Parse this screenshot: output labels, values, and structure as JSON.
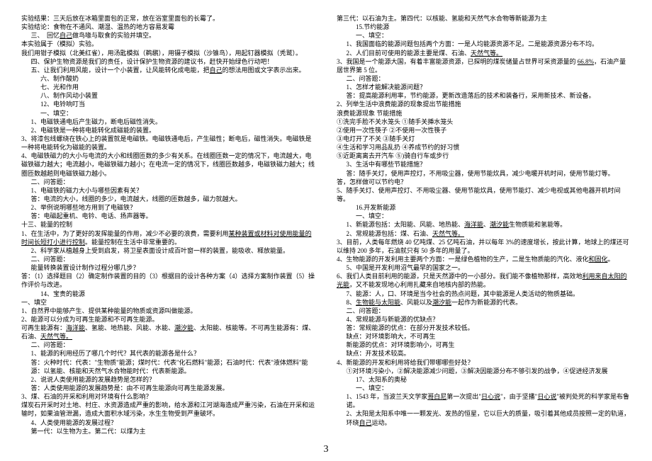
{
  "left": [
    {
      "t": "实验结果：三天后放在冰箱里面包的正常，放在浴室里面包的长霉了。",
      "c": ""
    },
    {
      "t": "实验结论：食物在不通风、潮湿、温热的地方容易发霉",
      "c": ""
    },
    {
      "t": "三、　回忆自己做鸟喙与取食的实验并填空。",
      "c": "indent1"
    },
    {
      "t": "本实验属于（模拟）实验。",
      "c": ""
    },
    {
      "t": "我们用钳子模拟（北美红雀），用汤匙模拟（鹈鹕），用镊子模拟（沙锥鸟），用起钉器模拟（秃鹫）。",
      "c": ""
    },
    {
      "t": "四、保护生物资源是我们的责任，设计保护生物资源的建议书，赶快开始绿色行动吧！",
      "c": "indent1"
    },
    {
      "t": "五、让我们利用风能，设计一个小装置，让风能转化成电能，把自己的想法用图或文字表示出来。",
      "c": "indent1"
    },
    {
      "t": "六、制作酸奶",
      "c": "indent2"
    },
    {
      "t": "七、光和作用",
      "c": "indent2"
    },
    {
      "t": "八、制作风动小装置",
      "c": "indent2"
    },
    {
      "t": "12、电铃响叮当",
      "c": "indent2"
    },
    {
      "t": "一、填空：",
      "c": "indent2"
    },
    {
      "t": "1、电磁铁通电后产生磁力，断电后磁性消失。",
      "c": "indent1"
    },
    {
      "t": "2、电磁铁是一种将电能转化成磁能的装置。",
      "c": "indent1"
    },
    {
      "t": "3、将漆包线螺绕在铁心上的装置就是电磁铁。电磁铁通电后，产生磁性；断电后，磁性消失。电磁铁是一种将电能转化为磁能的装置。",
      "c": ""
    },
    {
      "t": "4、电磁铁磁力的大小与电流的大小和线圈匝数的多少有关系。在线圈匝数一定的情况下，电流越大，电磁铁磁力越大；电流越小，电磁铁磁力越小；在电流一定的情况下，线圈匝数越多，电磁铁磁力越大；线圈匝数越趟则电磁铁磁力越小。",
      "c": ""
    },
    {
      "t": "二、问答题：",
      "c": "indent1"
    },
    {
      "t": "1、电磁铁的磁力大小与哪些因素有关？",
      "c": "indent1"
    },
    {
      "t": "答：电流的大小，线圈的多少，电流越大，线圈的匝数越多，磁力就越大。",
      "c": "indent1"
    },
    {
      "t": "2、举例说明哪些地方用到了电磁铁？",
      "c": "indent1"
    },
    {
      "t": "答：电磁起重机、电钤、电话、扬声器等。",
      "c": "indent1"
    },
    {
      "t": "十三、能量的控制",
      "c": ""
    },
    {
      "t": "1、在生活中，为了更好的发挥能量的作用，减少不必要的浪费，需要利用某种装置或材料对使用能量的时间长短打小进行控制。能量控制在生活中非常重要的。",
      "c": ""
    },
    {
      "t": "2、科学家从植越身上受到启发，将卫星表面设计成百叶窗一样的装置，能吸收、释放能量。",
      "c": "indent1"
    },
    {
      "t": "二、问答题：",
      "c": "indent1"
    },
    {
      "t": "能量转换装置设计制作过程分哪几步？",
      "c": "indent1"
    },
    {
      "t": "答：（1）选择题目（2）确定制作装置的目的（3）根据目的设计各种方案（4）选择方案制作装置（5）操作评价与改进。",
      "c": ""
    },
    {
      "t": "14、宝贵的能源",
      "c": "indent2"
    },
    {
      "t": "一、填空",
      "c": ""
    },
    {
      "t": "1、自然界中能够产生、提供某种能量的物质或资源叫做能源。",
      "c": ""
    },
    {
      "t": "2、能源可以分成为可再生能源和不可再生能源。",
      "c": ""
    },
    {
      "t": "可再生能源有：海洋能、氢能、地热能、风能、水能、潮汐能、太阳能、核能等。不可再生能源有：煤、石油、天然气等。",
      "c": ""
    },
    {
      "t": "二、问答题：",
      "c": "indent1"
    },
    {
      "t": "1、能源的利用经历了哪几个时代？其代表的能源各是什么？",
      "c": "indent1"
    },
    {
      "t": "答：火种时代：代表：\"生物质\"能源；煤时代：代表\"化石燃料\"能源；石油时代：代表\"液体燃料\"能源：以氢能、核能和天然气水合物能时代：代表新能源。",
      "c": "indent1"
    },
    {
      "t": "2、说说人类使用能源的发展趋势是怎样的？",
      "c": "indent1"
    },
    {
      "t": "答：人类使用能源的发展趋势是：由不可再生能源向可再生能源发展。",
      "c": "indent1"
    },
    {
      "t": "3、煤、石油的开采和利用对环境有什么影响？",
      "c": ""
    },
    {
      "t": "煤炭石开采时对土地、村庄、水资源造成严重的影响，给水源和江河湖海造成严重污染，石油在开采和运输时，如果油管泄漏，造成大面积水域污染，水生生物受到严重破坏。",
      "c": ""
    },
    {
      "t": "4、人类使用能源的发展过程？",
      "c": "indent1"
    },
    {
      "t": "第一代：以生物为主。第二代：以煤为主",
      "c": "indent1"
    }
  ],
  "right": [
    {
      "t": "第三代：以石油为主。第四代：以核能、氢能和天然气水合物等新能源为主",
      "c": ""
    },
    {
      "t": "15.节约能源",
      "c": "indent2"
    },
    {
      "t": "一、填空：",
      "c": "indent2"
    },
    {
      "t": "1、我国面临的能源问题包括两个方面：一是人均能源资源不足。二是能源资源分布不均。",
      "c": "indent1"
    },
    {
      "t": "2、人们目前可使用的能源主要是煤、石油、天然气等。",
      "c": "indent1"
    },
    {
      "t": "3、我国是一个能源大国，有着丰富能源资源，已探明的煤炭储量占世界可采资源量的 66.8%，石油产量居世界第 5 位。",
      "c": ""
    },
    {
      "t": "二、问答题：",
      "c": "indent1"
    },
    {
      "t": "1、怎样才能解决能源问题？",
      "c": "indent1"
    },
    {
      "t": "答：提高能源利用率，节约能源，更新改造落后的技术和装备行，采用新技术、新设备。",
      "c": "indent1"
    },
    {
      "t": "2、列举生活中浪费能源的现象提出节能措施",
      "c": ""
    },
    {
      "t": "浪费能源现象 节能措施",
      "c": ""
    },
    {
      "t": "①洗完手脸不关水笼头 ①随手关挿水笼头",
      "c": ""
    },
    {
      "t": "②使用一次性筷子 ②不使用一次性筷子",
      "c": ""
    },
    {
      "t": "③电灯开了不关 ③随手关灯",
      "c": ""
    },
    {
      "t": "④生活和学习用品乱扔 ④养成节约的好习惯",
      "c": ""
    },
    {
      "t": "⑤近距离离去开汽车 ⑤)骑自行车或步行",
      "c": ""
    },
    {
      "t": "3、生活中有哪些节能措施？",
      "c": "indent1"
    },
    {
      "t": "答：随手关灯，使用声控灯，不用吸尘器，使用节能炊具，减少电暖开机时间，使用节能灯等。",
      "c": "indent1"
    },
    {
      "t": "答，怎样做可以节约电？",
      "c": ""
    },
    {
      "t": "5、随手关灯、使用声控灯、不用吸尘器、使用节能炊具，使用节能灯、减少电视或其他电器开机时间等。",
      "c": ""
    },
    {
      "t": "16.开发新能源",
      "c": "indent2"
    },
    {
      "t": "一、填空：",
      "c": "indent2"
    },
    {
      "t": "1、新能源包括：太阳能、风能、地热能、海洋能、潮汐能生物质能和氢能等。",
      "c": "indent1"
    },
    {
      "t": "2、常规能源包括：煤、石油、天然气等。",
      "c": "indent1"
    },
    {
      "t": "3、目前，人类每年燃烧 40 亿吨煤、25 亿吨石油，并以每年 3%的速度增长，按此计算，地球上的煤还可以维持 200 多年，石油就只有 50 多年的用量了。",
      "c": ""
    },
    {
      "t": "4、生物能源的开发利用主要两个方面：一是绿色植物的生产，二是生物质能的汽化、液化和固化。",
      "c": ""
    },
    {
      "t": "5、中国是开发利用沼气最早的国家之一。",
      "c": "indent1"
    },
    {
      "t": "6、我们人类目前利用的能源，只是天然源中的一小部分。我们能不像植物那样，高效地利用来自太阳的光能，又不能发现地心利用扎藏来自地核内部的热能。",
      "c": ""
    },
    {
      "t": "7、能源：人，口、环境是当今社会的热点问题，其中能源是人类活动的物质基础。",
      "c": "indent1"
    },
    {
      "t": "8、生物能与太阳能、风能以及潮汐能一起作为新能源的代表。",
      "c": "indent1"
    },
    {
      "t": "二、问答题：",
      "c": "indent1"
    },
    {
      "t": "4、常规能源与新能源的优缺点？",
      "c": "indent1"
    },
    {
      "t": "答：常规能源的优点：在部分开发技术较低。",
      "c": "indent1"
    },
    {
      "t": "缺点：对环境影响大，不可再生",
      "c": "indent1"
    },
    {
      "t": "新能源的优点：对环境影响小，可再生",
      "c": "indent1"
    },
    {
      "t": "缺点：开发技术较高。",
      "c": "indent1"
    },
    {
      "t": "4、新能源的开发和利用将给我们带哪哪些好处？",
      "c": ""
    },
    {
      "t": "①对环境污染小，②解决能源减少问题，③解决因能源分布不够引发的战争，④促进经济发展",
      "c": "indent1"
    },
    {
      "t": "17、太阳系的奥秘",
      "c": "indent2"
    },
    {
      "t": "一、填空：",
      "c": "indent2"
    },
    {
      "t": "1、1543 年，当波兰天文学家哥白尼第一次提出\"日心说\"，由于坚播\"日心说\"被判处死的科学家是布鲁诺。",
      "c": "indent1"
    },
    {
      "t": "2、太阳是太阳系中唯一一颗发光、发热的恒星，它以巨大的质量，吸引着其他成员按照一定的轨道，环绕自己运动。",
      "c": "indent1"
    }
  ],
  "page_number": "3"
}
